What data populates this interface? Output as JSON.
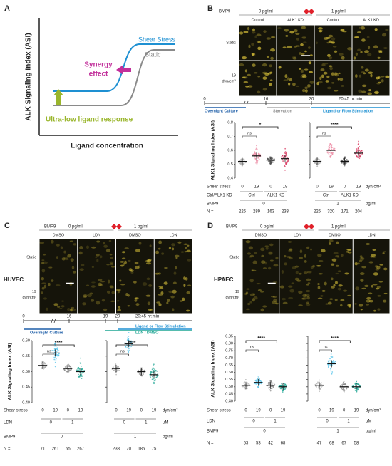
{
  "panel_a": {
    "label": "A",
    "y_axis_label": "ALK Signaling Index (ASI)",
    "x_axis_label": "Ligand concentration",
    "legend": [
      "Shear Stress",
      "Static"
    ],
    "synergy": [
      "Synergy",
      "effect"
    ],
    "ultra_low": "Ultra-low ligand response"
  },
  "panel_b": {
    "label": "B",
    "header": {
      "bmp9": "BMP9",
      "low": "0 pg/ml",
      "high": "1 pg/ml"
    },
    "columns": [
      "Control",
      "ALK1 KD",
      "Control",
      "ALK1 KD"
    ],
    "row_labels": [
      [
        "Static"
      ],
      [
        "19",
        "dyn/cm²"
      ]
    ],
    "timeline": {
      "ticks": [
        "0",
        "16",
        "20",
        "20:45 hr:min"
      ],
      "phases": [
        "Overnight Culture",
        "Starvation",
        "Ligand or Flow Stimulation"
      ]
    },
    "plot": {
      "y_axis_label": "ALK1 Signaling Index (ASI)",
      "ylim": [
        0.4,
        0.8
      ],
      "yticks": [
        0.4,
        0.5,
        0.6,
        0.7,
        0.8
      ],
      "colors": [
        "#b0b0b0",
        "#ec8aa3",
        "#5a5a5a",
        "#d8365e"
      ],
      "groups": [
        {
          "medians": [
            0.52,
            0.56,
            0.53,
            0.54
          ],
          "ns": "ns",
          "significance": "*"
        },
        {
          "medians": [
            0.52,
            0.6,
            0.52,
            0.58
          ],
          "ns": "ns",
          "significance": "****"
        }
      ],
      "rows": [
        {
          "label": "Shear stress",
          "cells": [
            [
              "0",
              "19",
              "0",
              "19"
            ],
            [
              "0",
              "19",
              "0",
              "19"
            ]
          ],
          "unit": "dyn/cm²"
        },
        {
          "label": "Ctrl/ALK1 KD",
          "cells": [
            [
              "Ctrl",
              "ALK1 KD"
            ],
            [
              "Ctrl",
              "ALK1 KD"
            ]
          ]
        },
        {
          "label": "BMP9",
          "cells": [
            [
              "0"
            ],
            [
              "1"
            ]
          ],
          "unit": "pg/ml"
        },
        {
          "label": "N =",
          "cells": [
            [
              "226",
              "289",
              "163",
              "233"
            ],
            [
              "226",
              "320",
              "171",
              "204"
            ]
          ]
        }
      ]
    }
  },
  "panel_c": {
    "label": "C",
    "cell_type": "HUVEC",
    "header": {
      "bmp9": "BMP9",
      "low": "0 pg/ml",
      "high": "1 pg/ml"
    },
    "columns": [
      "DMSO",
      "LDN",
      "DMSO",
      "LDN"
    ],
    "row_labels": [
      [
        "Static"
      ],
      [
        "19",
        "dyn/cm²"
      ]
    ],
    "timeline": {
      "ticks": [
        "0",
        "16",
        "19",
        "20",
        "20:45 hr:min"
      ],
      "phases": [
        "Overnight Culture",
        "Ligand or Flow Stimulation",
        "LDN / DMSO"
      ]
    },
    "plot": {
      "y_axis_label": "ALK Signaling Index (ASI)",
      "ylim": [
        0.4,
        0.6
      ],
      "yticks": [
        {
          "value": 0.4,
          "label": "0.40"
        },
        0.45,
        {
          "value": 0.5,
          "label": "0.50"
        },
        0.55,
        {
          "value": 0.6,
          "label": "0.60"
        }
      ],
      "colors": [
        "#b0b0b0",
        "#4fc1e9",
        "#8c8c8c",
        "#1fa594"
      ],
      "groups": [
        {
          "medians": [
            0.52,
            0.56,
            0.51,
            0.5
          ],
          "ns": "ns",
          "significance": "****"
        },
        {
          "medians": [
            0.51,
            0.59,
            0.5,
            0.49
          ],
          "ns": "ns",
          "significance": "****"
        }
      ],
      "rows": [
        {
          "label": "Shear stress",
          "cells": [
            [
              "0",
              "19",
              "0",
              "19"
            ],
            [
              "0",
              "19",
              "0",
              "19"
            ]
          ],
          "unit": "dyn/cm²"
        },
        {
          "label": "LDN",
          "cells": [
            [
              "0",
              "1"
            ],
            [
              "0",
              "1"
            ]
          ],
          "unit": "µM"
        },
        {
          "label": "BMP9",
          "cells": [
            [
              "0"
            ],
            [
              "1"
            ]
          ],
          "unit": "pg/ml"
        },
        {
          "label": "N =",
          "cells": [
            [
              "71",
              "261",
              "65",
              "267"
            ],
            [
              "233",
              "70",
              "185",
              "75"
            ]
          ]
        }
      ]
    }
  },
  "panel_d": {
    "label": "D",
    "cell_type": "HPAEC",
    "header": {
      "bmp9": "BMP9",
      "low": "0 pg/ml",
      "high": "1 pg/ml"
    },
    "columns": [
      "DMSO",
      "LDN",
      "DMSO",
      "LDN"
    ],
    "row_labels": [
      [
        "Static"
      ],
      [
        "19",
        "dyn/cm²"
      ]
    ],
    "plot": {
      "y_axis_label": "ALK Signaling Index (ASI)",
      "ylim": [
        0.4,
        0.85
      ],
      "yticks": [
        {
          "value": 0.4,
          "label": "0.40"
        },
        0.45,
        {
          "value": 0.5,
          "label": "0.50"
        },
        0.55,
        {
          "value": 0.6,
          "label": "0.60"
        },
        0.65,
        {
          "value": 0.7,
          "label": "0.70"
        },
        0.75,
        {
          "value": 0.8,
          "label": "0.80"
        },
        0.85
      ],
      "colors": [
        "#b0b0b0",
        "#4fc1e9",
        "#8c8c8c",
        "#1fa594"
      ],
      "groups": [
        {
          "medians": [
            0.51,
            0.53,
            0.51,
            0.5
          ],
          "ns": "ns",
          "significance": "****"
        },
        {
          "medians": [
            0.51,
            0.66,
            0.5,
            0.5
          ],
          "ns": "ns",
          "significance": "****"
        }
      ],
      "rows": [
        {
          "label": "Shear stress",
          "cells": [
            [
              "0",
              "19",
              "0",
              "19"
            ],
            [
              "0",
              "19",
              "0",
              "19"
            ]
          ],
          "unit": "dyn/cm²"
        },
        {
          "label": "LDN",
          "cells": [
            [
              "0",
              "1"
            ],
            [
              "0",
              "1"
            ]
          ],
          "unit": "µM"
        },
        {
          "label": "BMP9",
          "cells": [
            [
              "0"
            ],
            [
              "1"
            ]
          ],
          "unit": "pg/ml"
        },
        {
          "label": "N =",
          "cells": [
            [
              "53",
              "53",
              "42",
              "68"
            ],
            [
              "47",
              "68",
              "67",
              "58"
            ]
          ]
        }
      ]
    }
  }
}
